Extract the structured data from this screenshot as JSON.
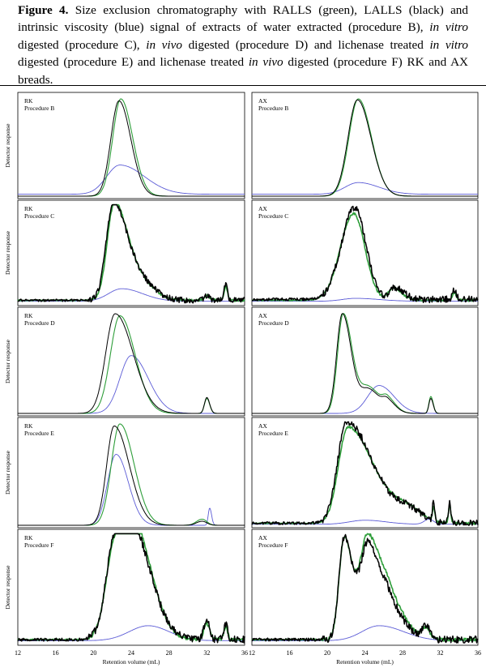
{
  "caption": {
    "label": "Figure 4.",
    "segments": [
      {
        "text": " Size exclusion chromatography with RALLS (green), LALLS (black) and intrinsic viscosity (blue) signal of extracts of water extracted (procedure B), ",
        "italic": false
      },
      {
        "text": "in vitro",
        "italic": true
      },
      {
        "text": " digested (procedure C), ",
        "italic": false
      },
      {
        "text": "in vivo",
        "italic": true
      },
      {
        "text": " digested (procedure D) and lichenase treated ",
        "italic": false
      },
      {
        "text": "in vitro",
        "italic": true
      },
      {
        "text": " digested (procedure E) and lichenase treated ",
        "italic": false
      },
      {
        "text": "in vivo",
        "italic": true
      },
      {
        "text": " digested (procedure F) RK and AX breads.",
        "italic": false
      }
    ]
  },
  "colors": {
    "ralls": "#2e9e3a",
    "lalls": "#000000",
    "viscosity": "#5b5bd6",
    "frame": "#000000"
  },
  "chart_data": {
    "type": "line",
    "xlabel": "Retention volume (mL)",
    "ylabel": "Detector response",
    "xlim": [
      12,
      36
    ],
    "xticks": [
      12,
      16,
      20,
      24,
      28,
      32,
      36
    ],
    "series_names": [
      "RALLS (green)",
      "LALLS (black)",
      "Intrinsic viscosity (blue)"
    ],
    "panels": [
      {
        "row": 0,
        "col": 0,
        "sample": "RK",
        "procedure": "Procedure B",
        "ralls": {
          "baseline": 0.0,
          "noise": 0.0,
          "peaks": [
            [
              22.9,
              1.0,
              0.85,
              1.25
            ]
          ]
        },
        "lalls": {
          "baseline": 0.0,
          "noise": 0.0,
          "peaks": [
            [
              22.7,
              0.98,
              0.85,
              1.25
            ]
          ]
        },
        "visc": {
          "baseline": 0.02,
          "noise": 0.0,
          "peaks": [
            [
              22.8,
              0.3,
              1.4,
              2.6
            ]
          ]
        }
      },
      {
        "row": 0,
        "col": 1,
        "sample": "AX",
        "procedure": "Procedure B",
        "ralls": {
          "baseline": 0.0,
          "noise": 0.0,
          "peaks": [
            [
              23.3,
              1.0,
              1.0,
              1.4
            ]
          ]
        },
        "lalls": {
          "baseline": 0.0,
          "noise": 0.0,
          "peaks": [
            [
              23.2,
              0.99,
              1.0,
              1.45
            ]
          ]
        },
        "visc": {
          "baseline": 0.02,
          "noise": 0.0,
          "peaks": [
            [
              23.3,
              0.12,
              1.4,
              2.2
            ]
          ]
        }
      },
      {
        "row": 1,
        "col": 0,
        "sample": "RK",
        "procedure": "Procedure C",
        "ralls": {
          "baseline": 0.03,
          "noise": 0.012,
          "peaks": [
            [
              22.2,
              0.98,
              0.75,
              1.3
            ],
            [
              24.6,
              0.22,
              1.2,
              1.6
            ],
            [
              32.0,
              0.05,
              0.3,
              0.3
            ],
            [
              34.0,
              0.14,
              0.18,
              0.18
            ]
          ]
        },
        "lalls": {
          "baseline": 0.03,
          "noise": 0.03,
          "peaks": [
            [
              22.1,
              1.0,
              0.75,
              1.4
            ],
            [
              24.8,
              0.2,
              1.2,
              1.6
            ],
            [
              32.0,
              0.05,
              0.3,
              0.3
            ],
            [
              34.0,
              0.17,
              0.18,
              0.18
            ]
          ]
        },
        "visc": {
          "baseline": 0.02,
          "noise": 0.0,
          "peaks": [
            [
              23.0,
              0.13,
              1.4,
              2.2
            ]
          ]
        }
      },
      {
        "row": 1,
        "col": 1,
        "sample": "AX",
        "procedure": "Procedure C",
        "ralls": {
          "baseline": 0.03,
          "noise": 0.012,
          "peaks": [
            [
              22.8,
              0.9,
              1.4,
              1.2
            ],
            [
              27.0,
              0.13,
              0.5,
              0.9
            ],
            [
              33.5,
              0.08,
              0.2,
              0.2
            ]
          ]
        },
        "lalls": {
          "baseline": 0.04,
          "noise": 0.035,
          "peaks": [
            [
              22.9,
              0.95,
              1.4,
              1.2
            ],
            [
              27.2,
              0.12,
              0.5,
              0.9
            ],
            [
              33.5,
              0.1,
              0.2,
              0.2
            ]
          ]
        },
        "visc": {
          "baseline": 0.02,
          "noise": 0.0,
          "peaks": [
            [
              23.0,
              0.03,
              1.4,
              2.5
            ]
          ]
        }
      },
      {
        "row": 2,
        "col": 0,
        "sample": "RK",
        "procedure": "Procedure D",
        "ralls": {
          "baseline": 0.0,
          "noise": 0.0,
          "peaks": [
            [
              22.8,
              0.98,
              1.0,
              1.6
            ],
            [
              32.0,
              0.15,
              0.25,
              0.3
            ]
          ]
        },
        "lalls": {
          "baseline": 0.0,
          "noise": 0.0,
          "peaks": [
            [
              22.3,
              1.0,
              1.0,
              1.9
            ],
            [
              32.0,
              0.16,
              0.25,
              0.3
            ]
          ]
        },
        "visc": {
          "baseline": 0.0,
          "noise": 0.0,
          "peaks": [
            [
              24.0,
              0.58,
              1.2,
              1.8
            ]
          ]
        }
      },
      {
        "row": 2,
        "col": 1,
        "sample": "AX",
        "procedure": "Procedure D",
        "ralls": {
          "baseline": 0.0,
          "noise": 0.0,
          "peaks": [
            [
              21.7,
              1.0,
              0.6,
              0.95
            ],
            [
              24.4,
              0.26,
              0.9,
              1.2
            ],
            [
              26.4,
              0.12,
              0.5,
              0.9
            ],
            [
              31.0,
              0.17,
              0.2,
              0.25
            ]
          ]
        },
        "lalls": {
          "baseline": 0.0,
          "noise": 0.0,
          "peaks": [
            [
              21.6,
              1.0,
              0.6,
              0.95
            ],
            [
              24.4,
              0.24,
              0.9,
              1.2
            ],
            [
              26.4,
              0.1,
              0.5,
              0.9
            ],
            [
              31.0,
              0.15,
              0.2,
              0.25
            ]
          ]
        },
        "visc": {
          "baseline": 0.0,
          "noise": 0.0,
          "peaks": [
            [
              25.5,
              0.28,
              1.2,
              1.6
            ]
          ]
        }
      },
      {
        "row": 3,
        "col": 0,
        "sample": "RK",
        "procedure": "Procedure E",
        "ralls": {
          "baseline": 0.0,
          "noise": 0.0,
          "peaks": [
            [
              22.8,
              1.0,
              0.9,
              1.5
            ],
            [
              31.5,
              0.06,
              0.6,
              0.5
            ]
          ]
        },
        "lalls": {
          "baseline": 0.0,
          "noise": 0.0,
          "peaks": [
            [
              22.2,
              0.98,
              0.8,
              1.6
            ],
            [
              31.5,
              0.04,
              0.6,
              0.5
            ]
          ]
        },
        "visc": {
          "baseline": 0.0,
          "noise": 0.0,
          "peaks": [
            [
              22.4,
              0.7,
              0.9,
              1.3
            ],
            [
              32.3,
              0.17,
              0.15,
              0.2
            ]
          ]
        }
      },
      {
        "row": 3,
        "col": 1,
        "sample": "AX",
        "procedure": "Procedure E",
        "ralls": {
          "baseline": 0.02,
          "noise": 0.012,
          "peaks": [
            [
              22.2,
              0.95,
              1.0,
              2.6
            ],
            [
              28.5,
              0.15,
              2.0,
              1.5
            ],
            [
              31.3,
              0.14,
              0.12,
              0.12
            ],
            [
              33.0,
              0.18,
              0.12,
              0.12
            ]
          ]
        },
        "lalls": {
          "baseline": 0.02,
          "noise": 0.035,
          "peaks": [
            [
              22.1,
              1.0,
              1.0,
              2.6
            ],
            [
              28.5,
              0.14,
              2.0,
              1.5
            ],
            [
              31.3,
              0.2,
              0.12,
              0.12
            ],
            [
              33.0,
              0.22,
              0.12,
              0.12
            ]
          ]
        },
        "visc": {
          "baseline": 0.01,
          "noise": 0.0,
          "peaks": [
            [
              24.0,
              0.04,
              1.6,
              2.2
            ],
            [
              30.8,
              0.05,
              0.5,
              0.5
            ]
          ]
        }
      },
      {
        "row": 4,
        "col": 0,
        "sample": "RK",
        "procedure": "Procedure F",
        "ralls": {
          "baseline": 0.03,
          "noise": 0.015,
          "peaks": [
            [
              22.4,
              0.96,
              1.0,
              2.0
            ],
            [
              25.0,
              0.6,
              1.1,
              1.7
            ],
            [
              32.0,
              0.15,
              0.3,
              0.3
            ],
            [
              34.0,
              0.12,
              0.2,
              0.2
            ]
          ]
        },
        "lalls": {
          "baseline": 0.03,
          "noise": 0.035,
          "peaks": [
            [
              22.4,
              1.0,
              1.0,
              2.2
            ],
            [
              25.0,
              0.45,
              1.1,
              1.8
            ],
            [
              32.0,
              0.18,
              0.3,
              0.3
            ],
            [
              34.0,
              0.14,
              0.2,
              0.2
            ]
          ]
        },
        "visc": {
          "baseline": 0.02,
          "noise": 0.0,
          "peaks": [
            [
              25.8,
              0.14,
              2.0,
              2.2
            ]
          ]
        }
      },
      {
        "row": 4,
        "col": 1,
        "sample": "AX",
        "procedure": "Procedure F",
        "ralls": {
          "baseline": 0.03,
          "noise": 0.015,
          "peaks": [
            [
              21.8,
              0.95,
              0.55,
              0.9
            ],
            [
              24.3,
              0.96,
              0.8,
              1.3
            ],
            [
              26.6,
              0.35,
              0.9,
              1.6
            ],
            [
              30.5,
              0.1,
              0.4,
              0.4
            ]
          ]
        },
        "lalls": {
          "baseline": 0.03,
          "noise": 0.035,
          "peaks": [
            [
              21.8,
              0.95,
              0.55,
              0.9
            ],
            [
              24.3,
              0.88,
              0.8,
              1.3
            ],
            [
              26.6,
              0.28,
              0.9,
              1.6
            ],
            [
              30.5,
              0.12,
              0.4,
              0.4
            ]
          ]
        },
        "visc": {
          "baseline": 0.02,
          "noise": 0.0,
          "peaks": [
            [
              25.5,
              0.14,
              1.8,
              2.6
            ]
          ]
        }
      }
    ]
  }
}
